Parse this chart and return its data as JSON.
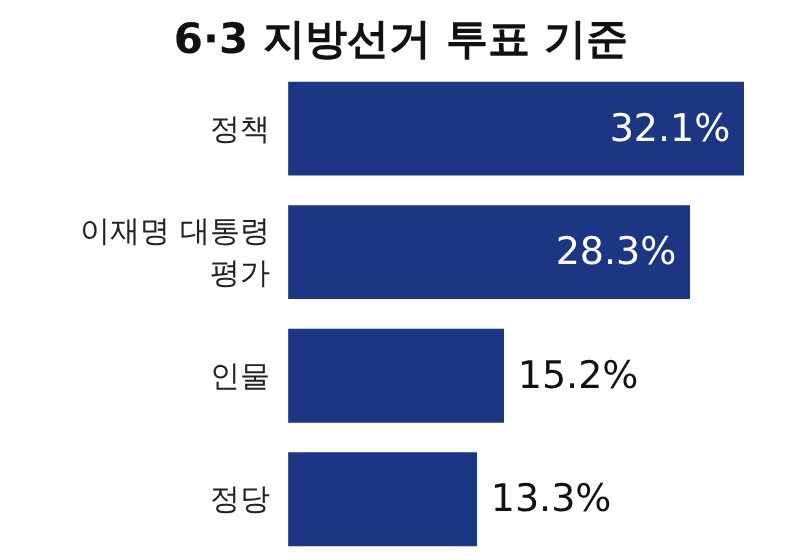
{
  "chart_data": {
    "type": "bar",
    "orientation": "horizontal",
    "title": "6·3 지방선거 투표 기준",
    "categories": [
      "정책",
      "이재명 대통령\n평가",
      "인물",
      "정당"
    ],
    "values": [
      32.1,
      28.3,
      15.2,
      13.3
    ],
    "value_labels": [
      "32.1%",
      "28.3%",
      "15.2%",
      "13.3%"
    ],
    "color": "#1c3684",
    "grid": false
  }
}
